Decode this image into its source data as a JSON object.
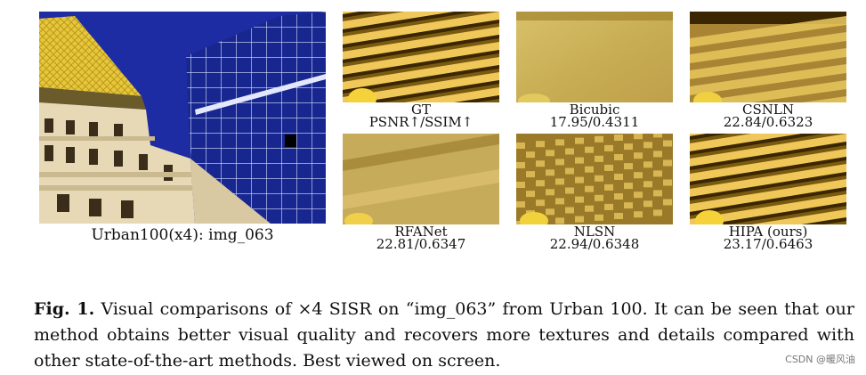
{
  "main_image": {
    "label": "Urban100(x4): img_063"
  },
  "patches": [
    {
      "title": "GT",
      "metric": "PSNR↑/SSIM↑",
      "style": "sharp"
    },
    {
      "title": "Bicubic",
      "metric": "17.95/0.4311",
      "style": "blur"
    },
    {
      "title": "CSNLN",
      "metric": "22.84/0.6323",
      "style": "medium"
    },
    {
      "title": "RFANet",
      "metric": "22.81/0.6347",
      "style": "blur2"
    },
    {
      "title": "NLSN",
      "metric": "22.94/0.6348",
      "style": "checker"
    },
    {
      "title": "HIPA (ours)",
      "metric": "23.17/0.6463",
      "style": "sharp2"
    }
  ],
  "caption": {
    "label": "Fig. 1.",
    "text": "Visual comparisons of ×4 SISR on “img_063” from Urban 100. It can be seen that our method obtains better visual quality and recovers more textures and details compared with other state-of-the-art methods. Best viewed on screen."
  },
  "watermark": "CSDN @暖风油"
}
